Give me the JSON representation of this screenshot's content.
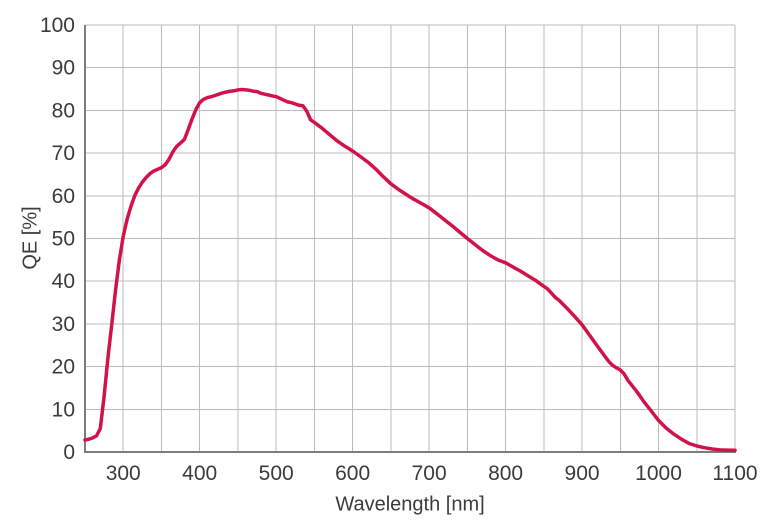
{
  "figure": {
    "background": "#ffffff"
  },
  "chart_data": {
    "type": "line",
    "title": "",
    "xlabel": "Wavelength [nm]",
    "ylabel": "QE [%]",
    "xlim": [
      250,
      1100
    ],
    "ylim": [
      0,
      100
    ],
    "grid": true,
    "legend_position": "none",
    "x_grid_step": 50,
    "y_grid_step": 10,
    "x_tick_labels": [
      300,
      400,
      500,
      600,
      700,
      800,
      900,
      1000,
      1100
    ],
    "y_tick_labels": [
      0,
      10,
      20,
      30,
      40,
      50,
      60,
      70,
      80,
      90,
      100
    ],
    "colors": {
      "line": "#d1134a",
      "gridline": "#bcbcbc",
      "axis": "#7d7d7d",
      "text": "#3b3b3b"
    },
    "series": [
      {
        "name": "QE",
        "color": "#d1134a",
        "line_width": 3.5,
        "x": [
          250,
          255,
          260,
          265,
          270,
          275,
          280,
          285,
          290,
          295,
          300,
          305,
          310,
          315,
          320,
          325,
          330,
          335,
          340,
          345,
          350,
          355,
          360,
          365,
          370,
          375,
          380,
          385,
          390,
          395,
          400,
          405,
          410,
          415,
          420,
          425,
          430,
          435,
          440,
          445,
          450,
          455,
          460,
          465,
          470,
          475,
          480,
          485,
          490,
          495,
          500,
          505,
          510,
          515,
          520,
          525,
          530,
          535,
          540,
          545,
          550,
          555,
          560,
          570,
          580,
          590,
          600,
          610,
          620,
          630,
          640,
          650,
          660,
          670,
          680,
          690,
          700,
          710,
          720,
          730,
          740,
          750,
          760,
          770,
          780,
          790,
          800,
          810,
          820,
          830,
          840,
          850,
          855,
          860,
          865,
          870,
          880,
          890,
          900,
          910,
          920,
          930,
          935,
          940,
          945,
          950,
          955,
          960,
          970,
          975,
          980,
          990,
          1000,
          1010,
          1020,
          1030,
          1040,
          1050,
          1060,
          1070,
          1080,
          1090,
          1100
        ],
        "y": [
          2.8,
          3.0,
          3.3,
          3.8,
          5.5,
          13,
          22,
          30,
          38,
          45,
          50.5,
          54.5,
          57.5,
          60,
          61.8,
          63.2,
          64.3,
          65.2,
          65.8,
          66.2,
          66.6,
          67.3,
          68.6,
          70.3,
          71.6,
          72.4,
          73.2,
          75.5,
          78,
          80.2,
          81.8,
          82.6,
          83.0,
          83.2,
          83.5,
          83.8,
          84.1,
          84.3,
          84.5,
          84.6,
          84.8,
          84.9,
          84.8,
          84.7,
          84.5,
          84.4,
          84.0,
          83.8,
          83.6,
          83.4,
          83.2,
          82.8,
          82.4,
          82.0,
          81.8,
          81.5,
          81.2,
          81.1,
          79.8,
          77.8,
          77.2,
          76.5,
          75.8,
          74.3,
          72.8,
          71.6,
          70.5,
          69.2,
          67.9,
          66.3,
          64.5,
          62.8,
          61.5,
          60.3,
          59.2,
          58.2,
          57.2,
          55.8,
          54.4,
          53.0,
          51.5,
          50.0,
          48.6,
          47.2,
          46.0,
          45.0,
          44.3,
          43.3,
          42.3,
          41.2,
          40.1,
          38.8,
          38.2,
          37.2,
          36.2,
          35.5,
          33.7,
          31.8,
          29.8,
          27.3,
          24.8,
          22.4,
          21.2,
          20.3,
          19.7,
          19.2,
          18.3,
          16.8,
          14.5,
          13.3,
          12.0,
          9.7,
          7.4,
          5.6,
          4.2,
          3.0,
          2.0,
          1.4,
          1.0,
          0.7,
          0.5,
          0.45,
          0.4
        ]
      }
    ]
  }
}
